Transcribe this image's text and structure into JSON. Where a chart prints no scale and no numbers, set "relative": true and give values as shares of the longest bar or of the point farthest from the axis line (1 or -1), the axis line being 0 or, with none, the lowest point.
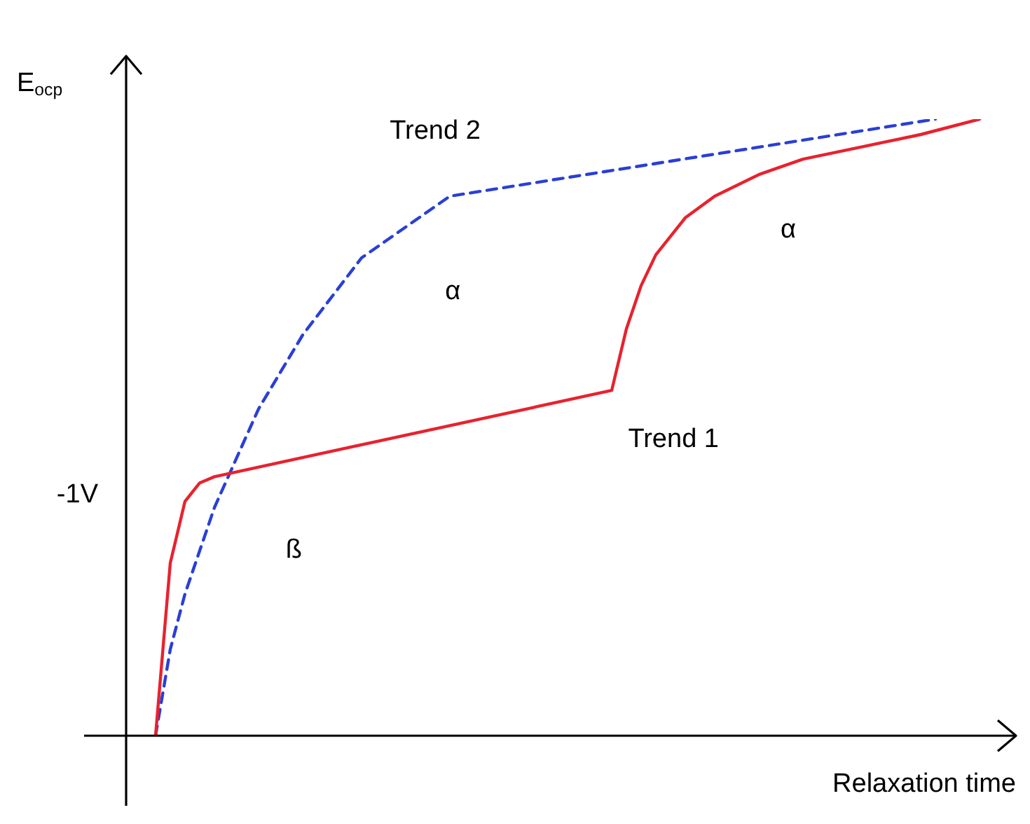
{
  "chart_data": {
    "type": "line",
    "relative": true,
    "xlabel": "Relaxation time",
    "ylabel": "E$_{ocp}$",
    "legend": false,
    "marker": "none",
    "categories": [
      null,
      null,
      null,
      null,
      null,
      null,
      null,
      null,
      null,
      null,
      null,
      null,
      null,
      null,
      null,
      null,
      null,
      null,
      null,
      null,
      null,
      null,
      null,
      null,
      null,
      null,
      null,
      null,
      null,
      null,
      null,
      null,
      null,
      null,
      null,
      null,
      null,
      null,
      null,
      null,
      null,
      null,
      null,
      null,
      null,
      null,
      null,
      null,
      null,
      null,
      null,
      null,
      null,
      null,
      null,
      null,
      null,
      null,
      null,
      null,
      null
    ],
    "series": [
      {
        "color": "#e8222e",
        "line_style": "solid",
        "values": [
          null,
          null,
          0,
          0.28,
          0.38,
          0.41,
          0.42,
          null,
          null,
          null,
          null,
          null,
          null,
          null,
          null,
          null,
          null,
          null,
          null,
          null,
          null,
          null,
          null,
          null,
          null,
          null,
          null,
          null,
          null,
          null,
          null,
          null,
          null,
          0.56,
          0.66,
          0.73,
          0.78,
          null,
          0.84,
          null,
          0.875,
          null,
          null,
          0.91,
          null,
          null,
          0.935,
          null,
          null,
          null,
          0.955,
          null,
          null,
          null,
          0.975,
          null,
          null,
          null,
          1,
          null,
          null
        ]
      },
      {
        "color": "#2a3fd6",
        "line_style": "dashed",
        "values": [
          null,
          null,
          0,
          0.14,
          0.23,
          null,
          0.37,
          null,
          null,
          0.53,
          null,
          null,
          0.65,
          null,
          null,
          null,
          0.775,
          null,
          null,
          null,
          null,
          null,
          0.875,
          null,
          null,
          null,
          null,
          null,
          null,
          null,
          null,
          null,
          null,
          null,
          null,
          null,
          null,
          null,
          null,
          null,
          null,
          null,
          null,
          null,
          null,
          null,
          null,
          null,
          null,
          null,
          null,
          null,
          null,
          null,
          null,
          1,
          null,
          null,
          null,
          null,
          null
        ]
      }
    ],
    "annotations": [
      "-1V",
      "Trend 2",
      "Trend 1",
      "α",
      "α",
      "ß"
    ]
  }
}
